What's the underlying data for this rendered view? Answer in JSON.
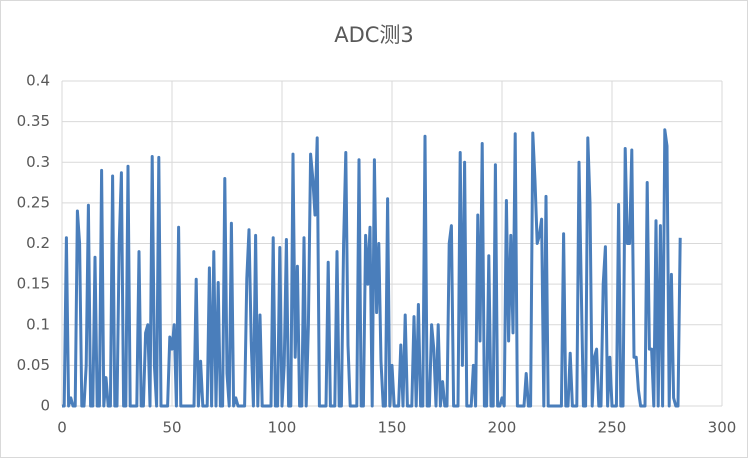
{
  "chart_data": {
    "type": "line",
    "title": "ADC测3",
    "x": [
      0,
      1,
      2,
      3,
      4,
      5,
      6,
      7,
      8,
      9,
      10,
      11,
      12,
      13,
      14,
      15,
      16,
      17,
      18,
      19,
      20,
      21,
      22,
      23,
      24,
      25,
      26,
      27,
      28,
      29,
      30,
      31,
      32,
      33,
      34,
      35,
      36,
      37,
      38,
      39,
      40,
      41,
      42,
      43,
      44,
      45,
      46,
      47,
      48,
      49,
      50,
      51,
      52,
      53,
      54,
      55,
      56,
      57,
      58,
      59,
      60,
      61,
      62,
      63,
      64,
      65,
      66,
      67,
      68,
      69,
      70,
      71,
      72,
      73,
      74,
      75,
      76,
      77,
      78,
      79,
      80,
      81,
      82,
      83,
      84,
      85,
      86,
      87,
      88,
      89,
      90,
      91,
      92,
      93,
      94,
      95,
      96,
      97,
      98,
      99,
      100,
      101,
      102,
      103,
      104,
      105,
      106,
      107,
      108,
      109,
      110,
      111,
      112,
      113,
      114,
      115,
      116,
      117,
      118,
      119,
      120,
      121,
      122,
      123,
      124,
      125,
      126,
      127,
      128,
      129,
      130,
      131,
      132,
      133,
      134,
      135,
      136,
      137,
      138,
      139,
      140,
      141,
      142,
      143,
      144,
      145,
      146,
      147,
      148,
      149,
      150,
      151,
      152,
      153,
      154,
      155,
      156,
      157,
      158,
      159,
      160,
      161,
      162,
      163,
      164,
      165,
      166,
      167,
      168,
      169,
      170,
      171,
      172,
      173,
      174,
      175,
      176,
      177,
      178,
      179,
      180,
      181,
      182,
      183,
      184,
      185,
      186,
      187,
      188,
      189,
      190,
      191,
      192,
      193,
      194,
      195,
      196,
      197,
      198,
      199,
      200,
      201,
      202,
      203,
      204,
      205,
      206,
      207,
      208,
      209,
      210,
      211,
      212,
      213,
      214,
      215,
      216,
      217,
      218,
      219,
      220,
      221,
      222,
      223,
      224,
      225,
      226,
      227,
      228,
      229,
      230,
      231,
      232,
      233,
      234,
      235,
      236,
      237,
      238,
      239,
      240,
      241,
      242,
      243,
      244,
      245,
      246,
      247,
      248,
      249,
      250,
      251,
      252,
      253,
      254,
      255,
      256,
      257,
      258,
      259,
      260,
      261,
      262,
      263,
      264,
      265,
      266,
      267,
      268,
      269,
      270,
      271,
      272,
      273,
      274,
      275,
      276,
      277,
      278,
      279,
      280,
      281
    ],
    "series": [
      {
        "color": "#4a7ebb",
        "values": [
          0,
          0,
          0.207,
          0,
          0.01,
          0,
          0,
          0.24,
          0.2,
          0,
          0,
          0.05,
          0.247,
          0,
          0,
          0.183,
          0,
          0,
          0.29,
          0,
          0.035,
          0,
          0,
          0.283,
          0,
          0,
          0.2,
          0.287,
          0,
          0,
          0.295,
          0,
          0,
          0,
          0,
          0.19,
          0,
          0,
          0.09,
          0.1,
          0,
          0.307,
          0.05,
          0,
          0.306,
          0,
          0,
          0,
          0,
          0.085,
          0.07,
          0.1,
          0,
          0.22,
          0,
          0,
          0,
          0,
          0,
          0,
          0,
          0.156,
          0,
          0.055,
          0,
          0,
          0,
          0.17,
          0,
          0.19,
          0,
          0.152,
          0,
          0,
          0.28,
          0.04,
          0,
          0.225,
          0,
          0.01,
          0,
          0,
          0,
          0,
          0.157,
          0.217,
          0.08,
          0,
          0.21,
          0,
          0.112,
          0,
          0,
          0,
          0,
          0,
          0.207,
          0,
          0,
          0.195,
          0,
          0.05,
          0.205,
          0,
          0,
          0.31,
          0.06,
          0.172,
          0,
          0,
          0.207,
          0,
          0.1,
          0.31,
          0.28,
          0.235,
          0.33,
          0,
          0,
          0,
          0,
          0.177,
          0,
          0,
          0,
          0.19,
          0,
          0,
          0.2,
          0.312,
          0.075,
          0,
          0,
          0,
          0,
          0.303,
          0,
          0,
          0.21,
          0.15,
          0.22,
          0,
          0.303,
          0.115,
          0.2,
          0.055,
          0,
          0,
          0.255,
          0,
          0.05,
          0,
          0,
          0,
          0.075,
          0,
          0.112,
          0,
          0,
          0,
          0.11,
          0,
          0.125,
          0,
          0,
          0.332,
          0,
          0,
          0.1,
          0.07,
          0,
          0.1,
          0,
          0.03,
          0,
          0,
          0.2,
          0.222,
          0,
          0,
          0,
          0.312,
          0.05,
          0.3,
          0,
          0,
          0,
          0.05,
          0,
          0.235,
          0.08,
          0.323,
          0,
          0,
          0.185,
          0,
          0,
          0.297,
          0,
          0,
          0.01,
          0,
          0.253,
          0.08,
          0.21,
          0.09,
          0.335,
          0,
          0,
          0,
          0,
          0.04,
          0,
          0,
          0.336,
          0.277,
          0.2,
          0.21,
          0.23,
          0,
          0.258,
          0,
          0,
          0,
          0,
          0,
          0,
          0,
          0.212,
          0,
          0,
          0.065,
          0,
          0,
          0,
          0.3,
          0.15,
          0,
          0,
          0.33,
          0.25,
          0,
          0.06,
          0.07,
          0,
          0,
          0.15,
          0.196,
          0,
          0.06,
          0,
          0,
          0,
          0.248,
          0,
          0,
          0.317,
          0.2,
          0.2,
          0.315,
          0.06,
          0.06,
          0.02,
          0,
          0,
          0,
          0.275,
          0.07,
          0.07,
          0,
          0.228,
          0,
          0.222,
          0,
          0.34,
          0.32,
          0,
          0.162,
          0.01,
          0,
          0,
          0.207
        ]
      }
    ],
    "xlim": [
      0,
      300
    ],
    "xticks": [
      0,
      50,
      100,
      150,
      200,
      250,
      300
    ],
    "ylim": [
      0,
      0.4
    ],
    "yticks": [
      0,
      0.05,
      0.1,
      0.15,
      0.2,
      0.25,
      0.3,
      0.35,
      0.4
    ],
    "grid": true
  }
}
